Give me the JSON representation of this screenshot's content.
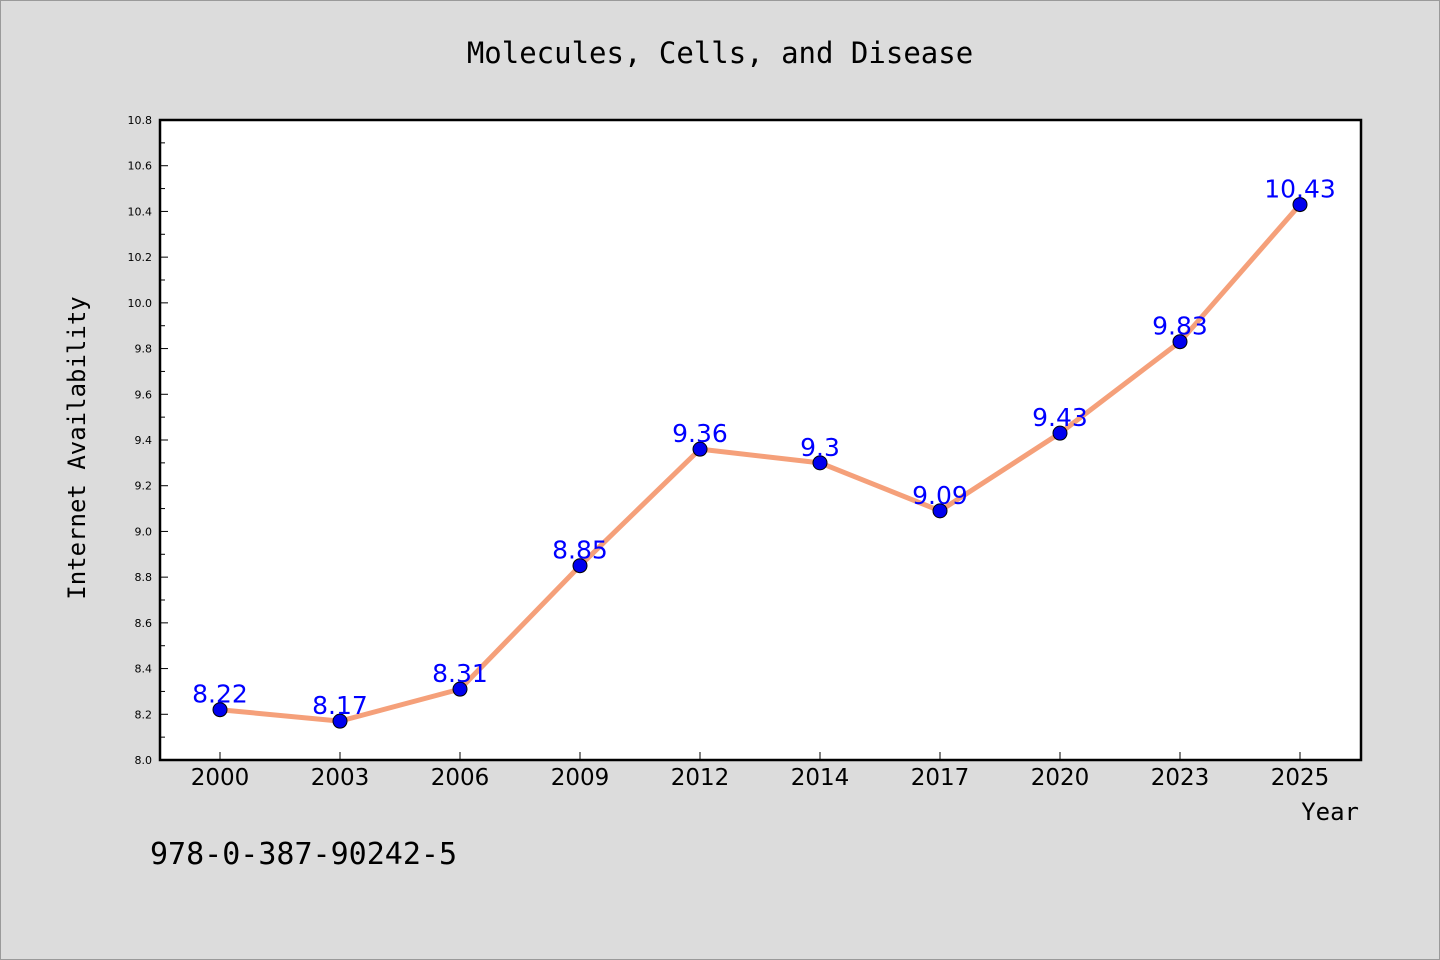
{
  "chart_data": {
    "type": "line",
    "title": "Molecules, Cells, and Disease",
    "xlabel": "Year",
    "ylabel": "Internet Availability",
    "categories": [
      "2000",
      "2003",
      "2006",
      "2009",
      "2012",
      "2014",
      "2017",
      "2020",
      "2023",
      "2025"
    ],
    "series": [
      {
        "values": [
          8.22,
          8.17,
          8.31,
          8.85,
          9.36,
          9.3,
          9.09,
          9.43,
          9.83,
          10.43
        ],
        "labels": [
          "8.22",
          "8.17",
          "8.31",
          "8.85",
          "9.36",
          "9.3",
          "9.09",
          "9.43",
          "9.83",
          "10.43"
        ],
        "line_color": "#f5a07a",
        "marker_color": "#0000ee"
      }
    ],
    "ylim": [
      8.0,
      10.8
    ],
    "yticks": [
      "8.0",
      "8.2",
      "8.4",
      "8.6",
      "8.8",
      "9.0",
      "9.2",
      "9.4",
      "9.6",
      "9.8",
      "10.0",
      "10.2",
      "10.4",
      "10.6",
      "10.8"
    ],
    "grid": false,
    "label_color": "#0000ff"
  },
  "annotation": "978-0-387-90242-5"
}
